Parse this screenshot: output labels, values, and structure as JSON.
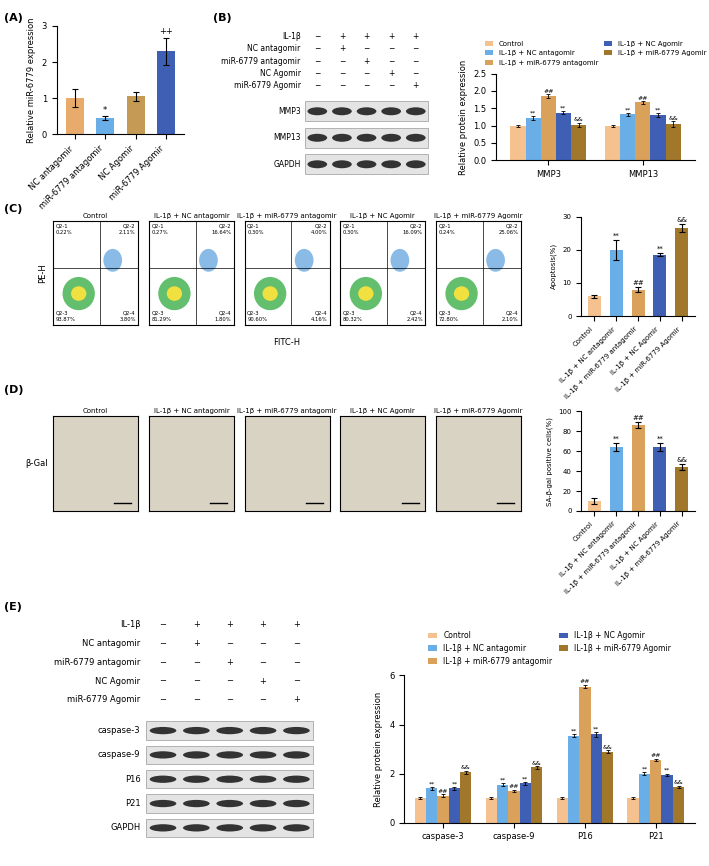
{
  "panel_labels": [
    "(A)",
    "(B)",
    "(C)",
    "(D)",
    "(E)"
  ],
  "chart_data": [
    {
      "type": "bar",
      "ylabel": "Relative miR-6779 expression",
      "categories": [
        "NC antagomir",
        "miR-6779 antagomir",
        "NC Agomir",
        "miR-6779 Agomir"
      ],
      "values": [
        1.0,
        0.45,
        1.05,
        2.3
      ],
      "errors": [
        0.25,
        0.06,
        0.12,
        0.38
      ],
      "colors": [
        "#e9ab6b",
        "#6aaee8",
        "#c49a55",
        "#3f5fb5"
      ],
      "annotations": [
        null,
        "*",
        null,
        "++"
      ],
      "ylim": [
        0,
        3
      ],
      "yticks": [
        0,
        1,
        2,
        3
      ]
    },
    {
      "type": "grouped_bar",
      "ylabel": "Relative protein expression",
      "categories": [
        "MMP3",
        "MMP13"
      ],
      "legend": "lower center",
      "series": [
        {
          "name": "Control",
          "color": "#f5c28f",
          "values": [
            1.0,
            1.0
          ],
          "errors": [
            0.03,
            0.03
          ],
          "annotations": [
            null,
            null
          ]
        },
        {
          "name": "IL-1β + NC antagomir",
          "color": "#6aaee8",
          "values": [
            1.22,
            1.32
          ],
          "errors": [
            0.05,
            0.05
          ],
          "annotations": [
            "**",
            "**"
          ]
        },
        {
          "name": "IL-1β + miR-6779 antagomir",
          "color": "#d9a15a",
          "values": [
            1.85,
            1.67
          ],
          "errors": [
            0.06,
            0.04
          ],
          "annotations": [
            "##",
            "##"
          ]
        },
        {
          "name": "IL-1β + NC Agomir",
          "color": "#3f5fb5",
          "values": [
            1.37,
            1.3
          ],
          "errors": [
            0.05,
            0.05
          ],
          "annotations": [
            "**",
            "**"
          ]
        },
        {
          "name": "IL-1β + miR-6779 Agomir",
          "color": "#a0772b",
          "values": [
            1.02,
            1.05
          ],
          "errors": [
            0.06,
            0.08
          ],
          "annotations": [
            "&&",
            "&&"
          ]
        }
      ],
      "ylim": [
        0,
        2.5
      ],
      "yticks": [
        {
          "value": 0,
          "label": "0.0"
        },
        {
          "value": 0.5,
          "label": "0.5"
        },
        {
          "value": 1,
          "label": "1.0"
        },
        {
          "value": 1.5,
          "label": "1.5"
        },
        {
          "value": 2,
          "label": "2.0"
        },
        {
          "value": 2.5,
          "label": "2.5"
        }
      ]
    },
    {
      "type": "bar",
      "ylabel": "Apoptosis(%)",
      "categories": [
        "Control",
        "IL-1β + NC antagomir",
        "IL-1β + miR-6779 antagomir",
        "IL-1β + NC Agomir",
        "IL-1β + miR-6779 Agomir"
      ],
      "values": [
        6.0,
        20.0,
        8.0,
        18.5,
        26.5
      ],
      "errors": [
        0.5,
        3.0,
        0.8,
        0.5,
        1.2
      ],
      "colors": [
        "#f5c28f",
        "#6aaee8",
        "#d9a15a",
        "#3f5fb5",
        "#a0772b"
      ],
      "annotations": [
        null,
        "**",
        "##",
        "**",
        "&&"
      ],
      "ylim": [
        0,
        30
      ],
      "yticks": [
        0,
        10,
        20,
        30
      ]
    },
    {
      "type": "bar",
      "ylabel": "SA-β-gal positive cells(%)",
      "categories": [
        "Control",
        "IL-1β + NC antagomir",
        "IL-1β + miR-6779 antagomir",
        "IL-1β + NC Agomir",
        "IL-1β + miR-6779 Agomir"
      ],
      "values": [
        10,
        64,
        86,
        64,
        44
      ],
      "errors": [
        3,
        4,
        3,
        4,
        3
      ],
      "colors": [
        "#f5c28f",
        "#6aaee8",
        "#d9a15a",
        "#3f5fb5",
        "#a0772b"
      ],
      "annotations": [
        null,
        "**",
        "##",
        "**",
        "&&"
      ],
      "ylim": [
        0,
        100
      ],
      "yticks": [
        0,
        20,
        40,
        60,
        80,
        100
      ]
    },
    {
      "type": "grouped_bar",
      "ylabel": "Relative protein expression",
      "categories": [
        "caspase-3",
        "caspase-9",
        "P16",
        "P21"
      ],
      "legend": "lower center",
      "series": [
        {
          "name": "Control",
          "color": "#f5c28f",
          "values": [
            1.0,
            1.0,
            1.0,
            1.0
          ],
          "errors": [
            0.03,
            0.03,
            0.05,
            0.03
          ],
          "annotations": [
            null,
            null,
            null,
            null
          ]
        },
        {
          "name": "IL-1β + NC antagomir",
          "color": "#6aaee8",
          "values": [
            1.4,
            1.55,
            3.55,
            2.0
          ],
          "errors": [
            0.05,
            0.05,
            0.05,
            0.05
          ],
          "annotations": [
            "**",
            "**",
            "**",
            "**"
          ]
        },
        {
          "name": "IL-1β + miR-6779 antagomir",
          "color": "#d9a15a",
          "values": [
            1.1,
            1.3,
            5.55,
            2.55
          ],
          "errors": [
            0.05,
            0.05,
            0.08,
            0.05
          ],
          "annotations": [
            "##",
            "##",
            "##",
            "##"
          ]
        },
        {
          "name": "IL-1β + NC Agomir",
          "color": "#3f5fb5",
          "values": [
            1.4,
            1.6,
            3.6,
            1.95
          ],
          "errors": [
            0.05,
            0.05,
            0.1,
            0.05
          ],
          "annotations": [
            "**",
            "**",
            "**",
            "**"
          ]
        },
        {
          "name": "IL-1β + miR-6779 Agomir",
          "color": "#a0772b",
          "values": [
            2.05,
            2.25,
            2.9,
            1.45
          ],
          "errors": [
            0.05,
            0.05,
            0.05,
            0.05
          ],
          "annotations": [
            "&&",
            "&&",
            "&&",
            "&&"
          ]
        }
      ],
      "ylim": [
        0,
        6
      ],
      "yticks": [
        0,
        2,
        4,
        6
      ]
    }
  ],
  "blots": [
    {
      "treatments": [
        {
          "name": "IL-1β",
          "signs": [
            "−",
            "+",
            "+",
            "+",
            "+"
          ]
        },
        {
          "name": "NC antagomir",
          "signs": [
            "−",
            "+",
            "−",
            "−",
            "−"
          ]
        },
        {
          "name": "miR-6779 antagomir",
          "signs": [
            "−",
            "−",
            "+",
            "−",
            "−"
          ]
        },
        {
          "name": "NC Agomir",
          "signs": [
            "−",
            "−",
            "−",
            "+",
            "−"
          ]
        },
        {
          "name": "miR-6779 Agomir",
          "signs": [
            "−",
            "−",
            "−",
            "−",
            "+"
          ]
        }
      ],
      "bands": [
        "MMP3",
        "MMP13",
        "GAPDH"
      ]
    },
    {
      "treatments": [
        {
          "name": "IL-1β",
          "signs": [
            "−",
            "+",
            "+",
            "+",
            "+"
          ]
        },
        {
          "name": "NC antagomir",
          "signs": [
            "−",
            "+",
            "−",
            "−",
            "−"
          ]
        },
        {
          "name": "miR-6779 antagomir",
          "signs": [
            "−",
            "−",
            "+",
            "−",
            "−"
          ]
        },
        {
          "name": "NC Agomir",
          "signs": [
            "−",
            "−",
            "−",
            "+",
            "−"
          ]
        },
        {
          "name": "miR-6779 Agomir",
          "signs": [
            "−",
            "−",
            "−",
            "−",
            "+"
          ]
        }
      ],
      "bands": [
        "caspase-3",
        "caspase-9",
        "P16",
        "P21",
        "GAPDH"
      ]
    }
  ],
  "flow_cytometry": {
    "xlabel": "FITC-H",
    "ylabel": "PE-H",
    "panels": [
      {
        "title": "Control",
        "quadrants": [
          [
            "Q2-1",
            "0.22%"
          ],
          [
            "Q2-2",
            "2.11%"
          ],
          [
            "Q2-3",
            "93.87%"
          ],
          [
            "Q2-4",
            "3.80%"
          ]
        ]
      },
      {
        "title": "IL-1β + NC antagomir",
        "quadrants": [
          [
            "Q2-1",
            "0.27%"
          ],
          [
            "Q2-2",
            "16.64%"
          ],
          [
            "Q2-3",
            "81.29%"
          ],
          [
            "Q2-4",
            "1.80%"
          ]
        ]
      },
      {
        "title": "IL-1β + miR-6779 antagomir",
        "quadrants": [
          [
            "Q2-1",
            "0.30%"
          ],
          [
            "Q2-2",
            "4.00%"
          ],
          [
            "Q2-3",
            "90.60%"
          ],
          [
            "Q2-4",
            "4.16%"
          ]
        ]
      },
      {
        "title": "IL-1β + NC Agomir",
        "quadrants": [
          [
            "Q2-1",
            "0.30%"
          ],
          [
            "Q2-2",
            "16.09%"
          ],
          [
            "Q2-3",
            "80.32%"
          ],
          [
            "Q2-4",
            "2.42%"
          ]
        ]
      },
      {
        "title": "IL-1β + miR-6779 Agomir",
        "quadrants": [
          [
            "Q2-1",
            "0.24%"
          ],
          [
            "Q2-2",
            "25.06%"
          ],
          [
            "Q2-3",
            "72.80%"
          ],
          [
            "Q2-4",
            "2.10%"
          ]
        ]
      }
    ]
  },
  "staining": {
    "stain_label": "β-Gal",
    "titles": [
      "Control",
      "IL-1β + NC antagomir",
      "IL-1β + miR-6779 antagomir",
      "IL-1β + NC Agomir",
      "IL-1β + miR-6779 Agomir"
    ]
  }
}
